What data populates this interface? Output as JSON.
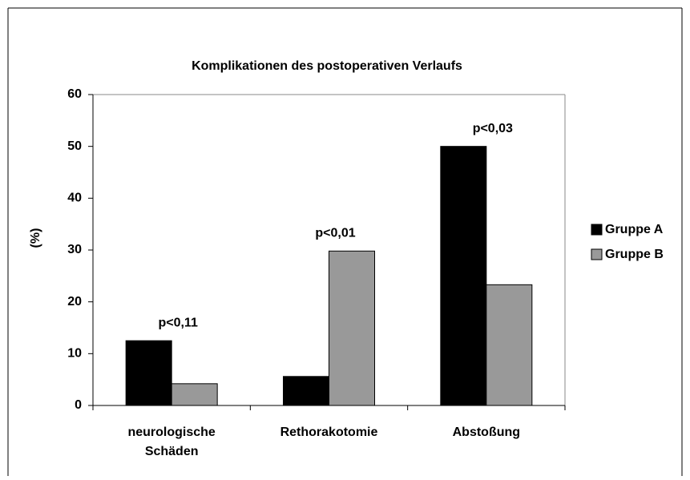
{
  "chart_data": {
    "type": "bar",
    "title": "Komplikationen des postoperativen Verlaufs",
    "y_label": "(%)",
    "categories": [
      "neurologische Schäden",
      "Rethorakotomie",
      "Abstoßung"
    ],
    "series": [
      {
        "name": "Gruppe A",
        "color": "#000000",
        "values": [
          12.5,
          5.6,
          50
        ]
      },
      {
        "name": "Gruppe B",
        "color": "#999999",
        "values": [
          4.2,
          29.8,
          23.3
        ]
      }
    ],
    "p_values": [
      "p<0,11",
      "p<0,01",
      "p<0,03"
    ],
    "ylim": [
      0,
      60
    ],
    "yticks": [
      0,
      10,
      20,
      30,
      40,
      50,
      60
    ],
    "grid": false,
    "legend": "right"
  }
}
